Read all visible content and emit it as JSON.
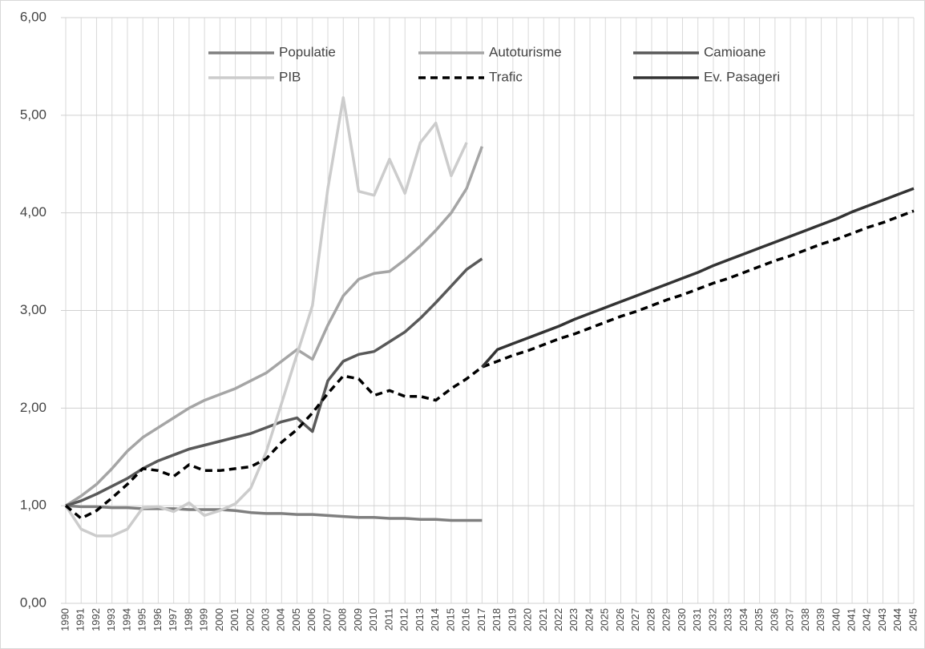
{
  "chart_data": {
    "type": "line",
    "categories": [
      "1990",
      "1991",
      "1992",
      "1993",
      "1994",
      "1995",
      "1996",
      "1997",
      "1998",
      "1999",
      "2000",
      "2001",
      "2002",
      "2003",
      "2004",
      "2005",
      "2006",
      "2007",
      "2008",
      "2009",
      "2010",
      "2011",
      "2012",
      "2013",
      "2014",
      "2015",
      "2016",
      "2017",
      "2018",
      "2019",
      "2020",
      "2021",
      "2022",
      "2023",
      "2024",
      "2025",
      "2026",
      "2027",
      "2028",
      "2029",
      "2030",
      "2031",
      "2032",
      "2033",
      "2034",
      "2035",
      "2036",
      "2037",
      "2038",
      "2039",
      "2040",
      "2041",
      "2042",
      "2043",
      "2044",
      "2045"
    ],
    "series": [
      {
        "name": "Populatie",
        "color": "#7f7f7f",
        "values": [
          1.0,
          0.99,
          0.99,
          0.98,
          0.98,
          0.97,
          0.97,
          0.97,
          0.96,
          0.96,
          0.96,
          0.95,
          0.93,
          0.92,
          0.92,
          0.91,
          0.91,
          0.9,
          0.89,
          0.88,
          0.88,
          0.87,
          0.87,
          0.86,
          0.86,
          0.85,
          0.85,
          0.85,
          null,
          null,
          null,
          null,
          null,
          null,
          null,
          null,
          null,
          null,
          null,
          null,
          null,
          null,
          null,
          null,
          null,
          null,
          null,
          null,
          null,
          null,
          null,
          null,
          null,
          null,
          null,
          null
        ]
      },
      {
        "name": "Autoturisme",
        "color": "#a5a5a5",
        "values": [
          1.0,
          1.1,
          1.22,
          1.38,
          1.56,
          1.7,
          1.8,
          1.9,
          2.0,
          2.08,
          2.14,
          2.2,
          2.28,
          2.36,
          2.48,
          2.6,
          2.5,
          2.85,
          3.15,
          3.32,
          3.38,
          3.4,
          3.52,
          3.66,
          3.82,
          4.0,
          4.25,
          4.68,
          null,
          null,
          null,
          null,
          null,
          null,
          null,
          null,
          null,
          null,
          null,
          null,
          null,
          null,
          null,
          null,
          null,
          null,
          null,
          null,
          null,
          null,
          null,
          null,
          null,
          null,
          null,
          null
        ]
      },
      {
        "name": "Camioane",
        "color": "#595959",
        "values": [
          1.0,
          1.05,
          1.12,
          1.2,
          1.28,
          1.38,
          1.46,
          1.52,
          1.58,
          1.62,
          1.66,
          1.7,
          1.74,
          1.8,
          1.86,
          1.9,
          1.76,
          2.28,
          2.48,
          2.55,
          2.58,
          2.68,
          2.78,
          2.92,
          3.08,
          3.25,
          3.42,
          3.53,
          null,
          null,
          null,
          null,
          null,
          null,
          null,
          null,
          null,
          null,
          null,
          null,
          null,
          null,
          null,
          null,
          null,
          null,
          null,
          null,
          null,
          null,
          null,
          null,
          null,
          null,
          null,
          null
        ]
      },
      {
        "name": "PIB",
        "color": "#cccccc",
        "values": [
          1.0,
          0.76,
          0.69,
          0.69,
          0.76,
          0.98,
          0.99,
          0.94,
          1.03,
          0.9,
          0.95,
          1.02,
          1.18,
          1.55,
          2.05,
          2.55,
          3.05,
          4.25,
          5.18,
          4.22,
          4.18,
          4.55,
          4.2,
          4.72,
          4.92,
          4.38,
          4.72,
          null,
          null,
          null,
          null,
          null,
          null,
          null,
          null,
          null,
          null,
          null,
          null,
          null,
          null,
          null,
          null,
          null,
          null,
          null,
          null,
          null,
          null,
          null,
          null,
          null,
          null,
          null,
          null,
          null
        ]
      },
      {
        "name": "Trafic",
        "color": "#000000",
        "dashed": true,
        "values": [
          1.0,
          0.87,
          0.95,
          1.08,
          1.22,
          1.38,
          1.36,
          1.3,
          1.42,
          1.36,
          1.36,
          1.38,
          1.4,
          1.48,
          1.65,
          1.78,
          1.95,
          2.15,
          2.33,
          2.3,
          2.13,
          2.18,
          2.12,
          2.12,
          2.08,
          2.2,
          2.3,
          2.42,
          2.48,
          2.54,
          2.59,
          2.65,
          2.71,
          2.76,
          2.82,
          2.88,
          2.94,
          2.99,
          3.05,
          3.11,
          3.16,
          3.22,
          3.28,
          3.33,
          3.39,
          3.45,
          3.51,
          3.56,
          3.62,
          3.68,
          3.73,
          3.79,
          3.85,
          3.9,
          3.96,
          4.02
        ]
      },
      {
        "name": "Ev. Pasageri",
        "color": "#333333",
        "values": [
          null,
          null,
          null,
          null,
          null,
          null,
          null,
          null,
          null,
          null,
          null,
          null,
          null,
          null,
          null,
          null,
          null,
          null,
          null,
          null,
          null,
          null,
          null,
          null,
          null,
          null,
          null,
          2.42,
          2.6,
          2.66,
          2.72,
          2.78,
          2.84,
          2.91,
          2.97,
          3.03,
          3.09,
          3.15,
          3.21,
          3.27,
          3.33,
          3.39,
          3.46,
          3.52,
          3.58,
          3.64,
          3.7,
          3.76,
          3.82,
          3.88,
          3.94,
          4.01,
          4.07,
          4.13,
          4.19,
          4.25
        ]
      }
    ],
    "ylim": [
      0,
      6
    ],
    "yticks": [
      {
        "value": 0,
        "label": "0,00"
      },
      {
        "value": 1,
        "label": "1,00"
      },
      {
        "value": 2,
        "label": "2,00"
      },
      {
        "value": 3,
        "label": "3,00"
      },
      {
        "value": 4,
        "label": "4,00"
      },
      {
        "value": 5,
        "label": "5,00"
      },
      {
        "value": 6,
        "label": "6,00"
      }
    ],
    "grid": true,
    "legend": "top"
  }
}
